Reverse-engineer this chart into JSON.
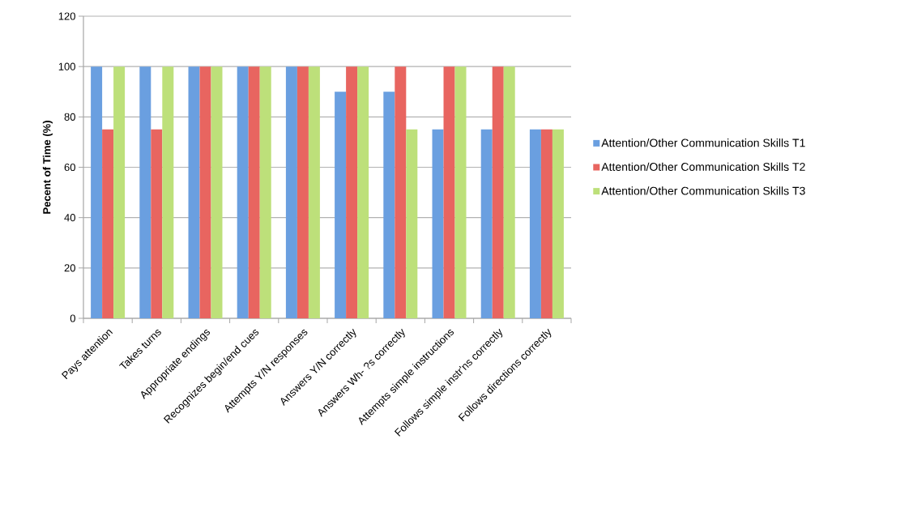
{
  "chart_data": {
    "type": "bar",
    "ylabel": "Pecent of Time (%)",
    "categories": [
      "Pays attention",
      "Takes turns",
      "Appropriate endings",
      "Recognizes begin/end cues",
      "Attempts Y/N responses",
      "Answers Y/N correctly",
      "Answers Wh- ?s correctly",
      "Attempts simple instructions",
      "Follows simple instr'ns correctly",
      "Follows directions correctly"
    ],
    "series": [
      {
        "name": "Attention/Other Communication Skills T1",
        "color": "#6a9fe0",
        "values": [
          100,
          100,
          100,
          100,
          100,
          90,
          90,
          75,
          75,
          75
        ]
      },
      {
        "name": "Attention/Other Communication Skills T2",
        "color": "#e86560",
        "values": [
          75,
          75,
          100,
          100,
          100,
          100,
          100,
          100,
          100,
          75
        ]
      },
      {
        "name": "Attention/Other Communication Skills T3",
        "color": "#bde07a",
        "values": [
          100,
          100,
          100,
          100,
          100,
          100,
          75,
          100,
          100,
          75
        ]
      }
    ],
    "ylim": [
      0,
      120
    ],
    "yticks": [
      0,
      20,
      40,
      60,
      80,
      100,
      120
    ],
    "grid": "y",
    "legend": "right"
  }
}
